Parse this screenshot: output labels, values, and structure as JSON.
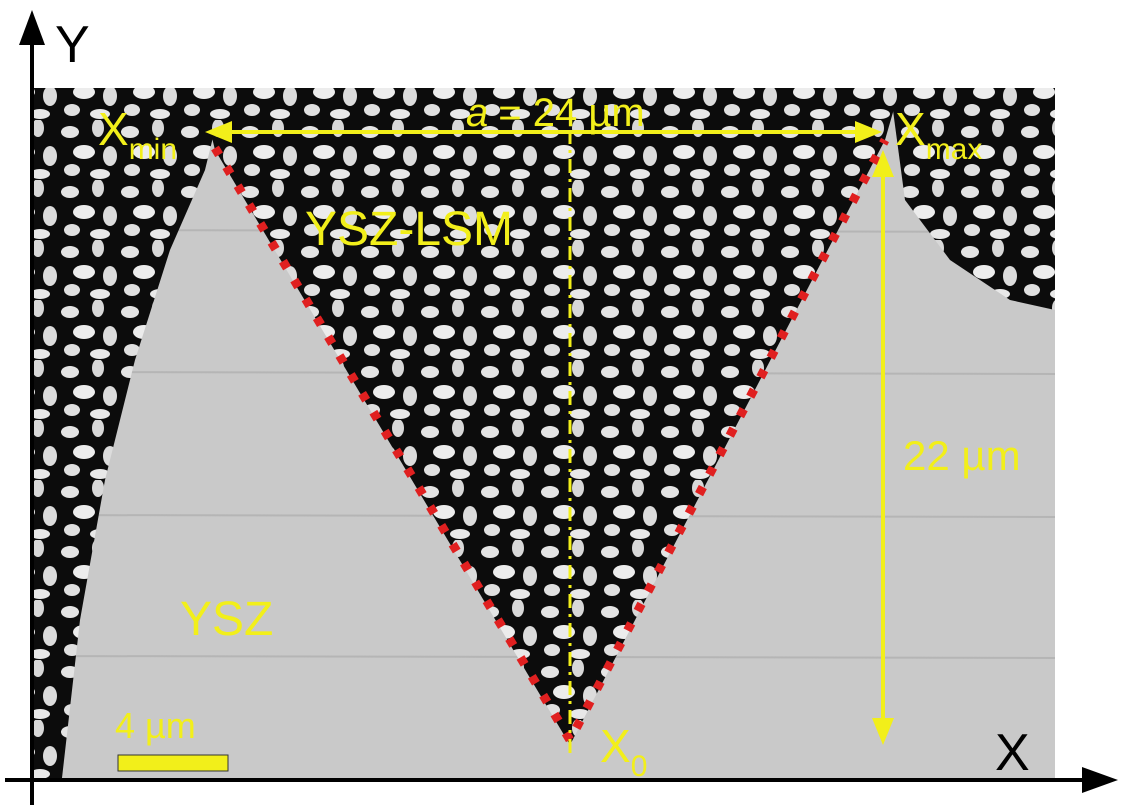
{
  "axes": {
    "y_label": "Y",
    "x_label": "X"
  },
  "labels": {
    "width": {
      "variable": "a",
      "text": "= 24 µm"
    },
    "x_min": {
      "main": "X",
      "sub": "min"
    },
    "x_max": {
      "main": "X",
      "sub": "max"
    },
    "x_0": {
      "main": "X",
      "sub": "0"
    },
    "height": "22 µm",
    "region_inner": "YSZ-LSM",
    "region_outer": "YSZ",
    "scale_bar": "4 µm"
  }
}
